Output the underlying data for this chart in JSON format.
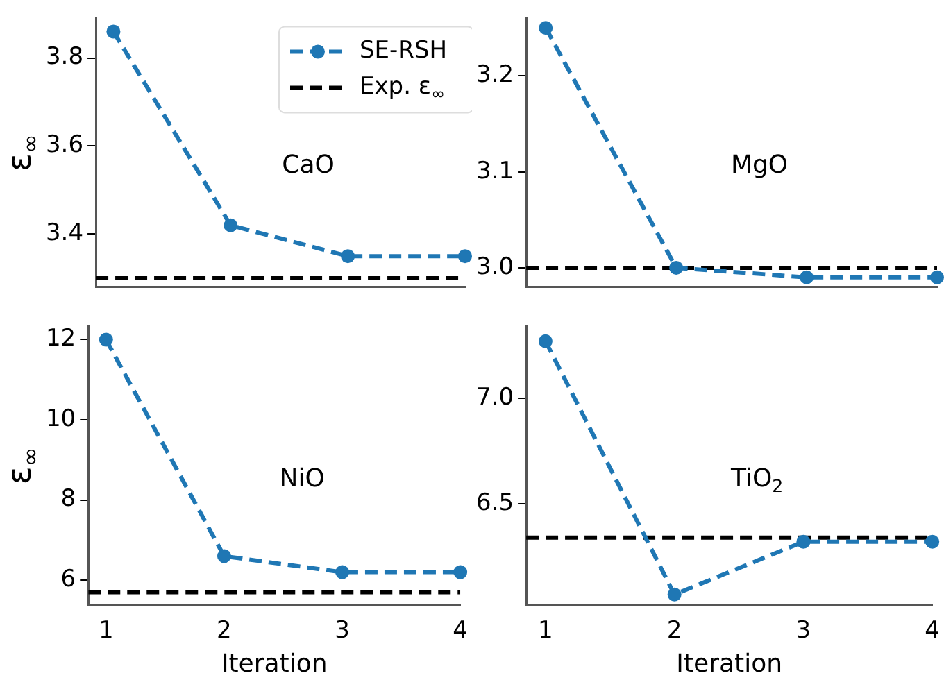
{
  "chart_data": [
    {
      "type": "line",
      "x": [
        1,
        2,
        3,
        4
      ],
      "series": [
        {
          "name": "SE-RSH",
          "color": "#1f77b4",
          "values": [
            3.86,
            3.42,
            3.35,
            3.35
          ]
        }
      ],
      "ylabel": "ε$_{∞}$",
      "annotations": [
        "CaO"
      ],
      "xlim": [
        0.85,
        4.0
      ],
      "xticks": [
        1,
        2,
        3,
        4
      ],
      "ylim": [
        3.28,
        3.89
      ],
      "yticks": [
        3.4,
        3.6,
        3.8
      ],
      "tick_labels": "y",
      "ref_lines": [
        {
          "axis": "y",
          "value": 3.3,
          "label": "Exp. ε$_{∞}$",
          "color": "#000000",
          "line_style": "dashed"
        }
      ],
      "legend": "top right",
      "marker": "circle",
      "line_style": "dashed",
      "grid": false
    },
    {
      "type": "line",
      "x": [
        1,
        2,
        3,
        4
      ],
      "series": [
        {
          "color": "#1f77b4",
          "values": [
            3.25,
            3.0,
            2.99,
            2.99
          ]
        }
      ],
      "annotations": [
        "MgO"
      ],
      "xlim": [
        0.85,
        4.0
      ],
      "xticks": [
        1,
        2,
        3,
        4
      ],
      "ylim": [
        2.98,
        3.26
      ],
      "yticks": [
        {
          "value": 3.0,
          "label": "3.0"
        },
        3.1,
        3.2
      ],
      "tick_labels": "y",
      "ref_lines": [
        {
          "axis": "y",
          "value": 3.0,
          "color": "#000000",
          "line_style": "dashed"
        }
      ],
      "legend": false,
      "marker": "circle",
      "line_style": "dashed",
      "grid": false
    },
    {
      "type": "line",
      "x": [
        1,
        2,
        3,
        4
      ],
      "series": [
        {
          "color": "#1f77b4",
          "values": [
            12.0,
            6.6,
            6.2,
            6.2
          ]
        }
      ],
      "xlabel": "Iteration",
      "ylabel": "ε$_{∞}$",
      "annotations": [
        "NiO"
      ],
      "xlim": [
        0.85,
        4.0
      ],
      "xticks": [
        1,
        2,
        3,
        4
      ],
      "ylim": [
        5.38,
        12.33
      ],
      "yticks": [
        6,
        8,
        10,
        12
      ],
      "ref_lines": [
        {
          "axis": "y",
          "value": 5.7,
          "color": "#000000",
          "line_style": "dashed"
        }
      ],
      "legend": false,
      "marker": "circle",
      "line_style": "dashed",
      "grid": false
    },
    {
      "type": "line",
      "x": [
        1,
        2,
        3,
        4
      ],
      "series": [
        {
          "color": "#1f77b4",
          "values": [
            7.27,
            6.07,
            6.32,
            6.32
          ]
        }
      ],
      "xlabel": "Iteration",
      "annotations": [
        "TiO$_{2}$"
      ],
      "xlim": [
        0.85,
        4.0
      ],
      "xticks": [
        1,
        2,
        3,
        4
      ],
      "ylim": [
        6.02,
        7.34
      ],
      "yticks": [
        {
          "value": 7.0,
          "label": "7.0"
        },
        {
          "value": 6.5,
          "label": "6.5"
        }
      ],
      "ref_lines": [
        {
          "axis": "y",
          "value": 6.34,
          "color": "#000000",
          "line_style": "dashed"
        }
      ],
      "legend": false,
      "marker": "circle",
      "line_style": "dashed",
      "grid": false
    }
  ]
}
